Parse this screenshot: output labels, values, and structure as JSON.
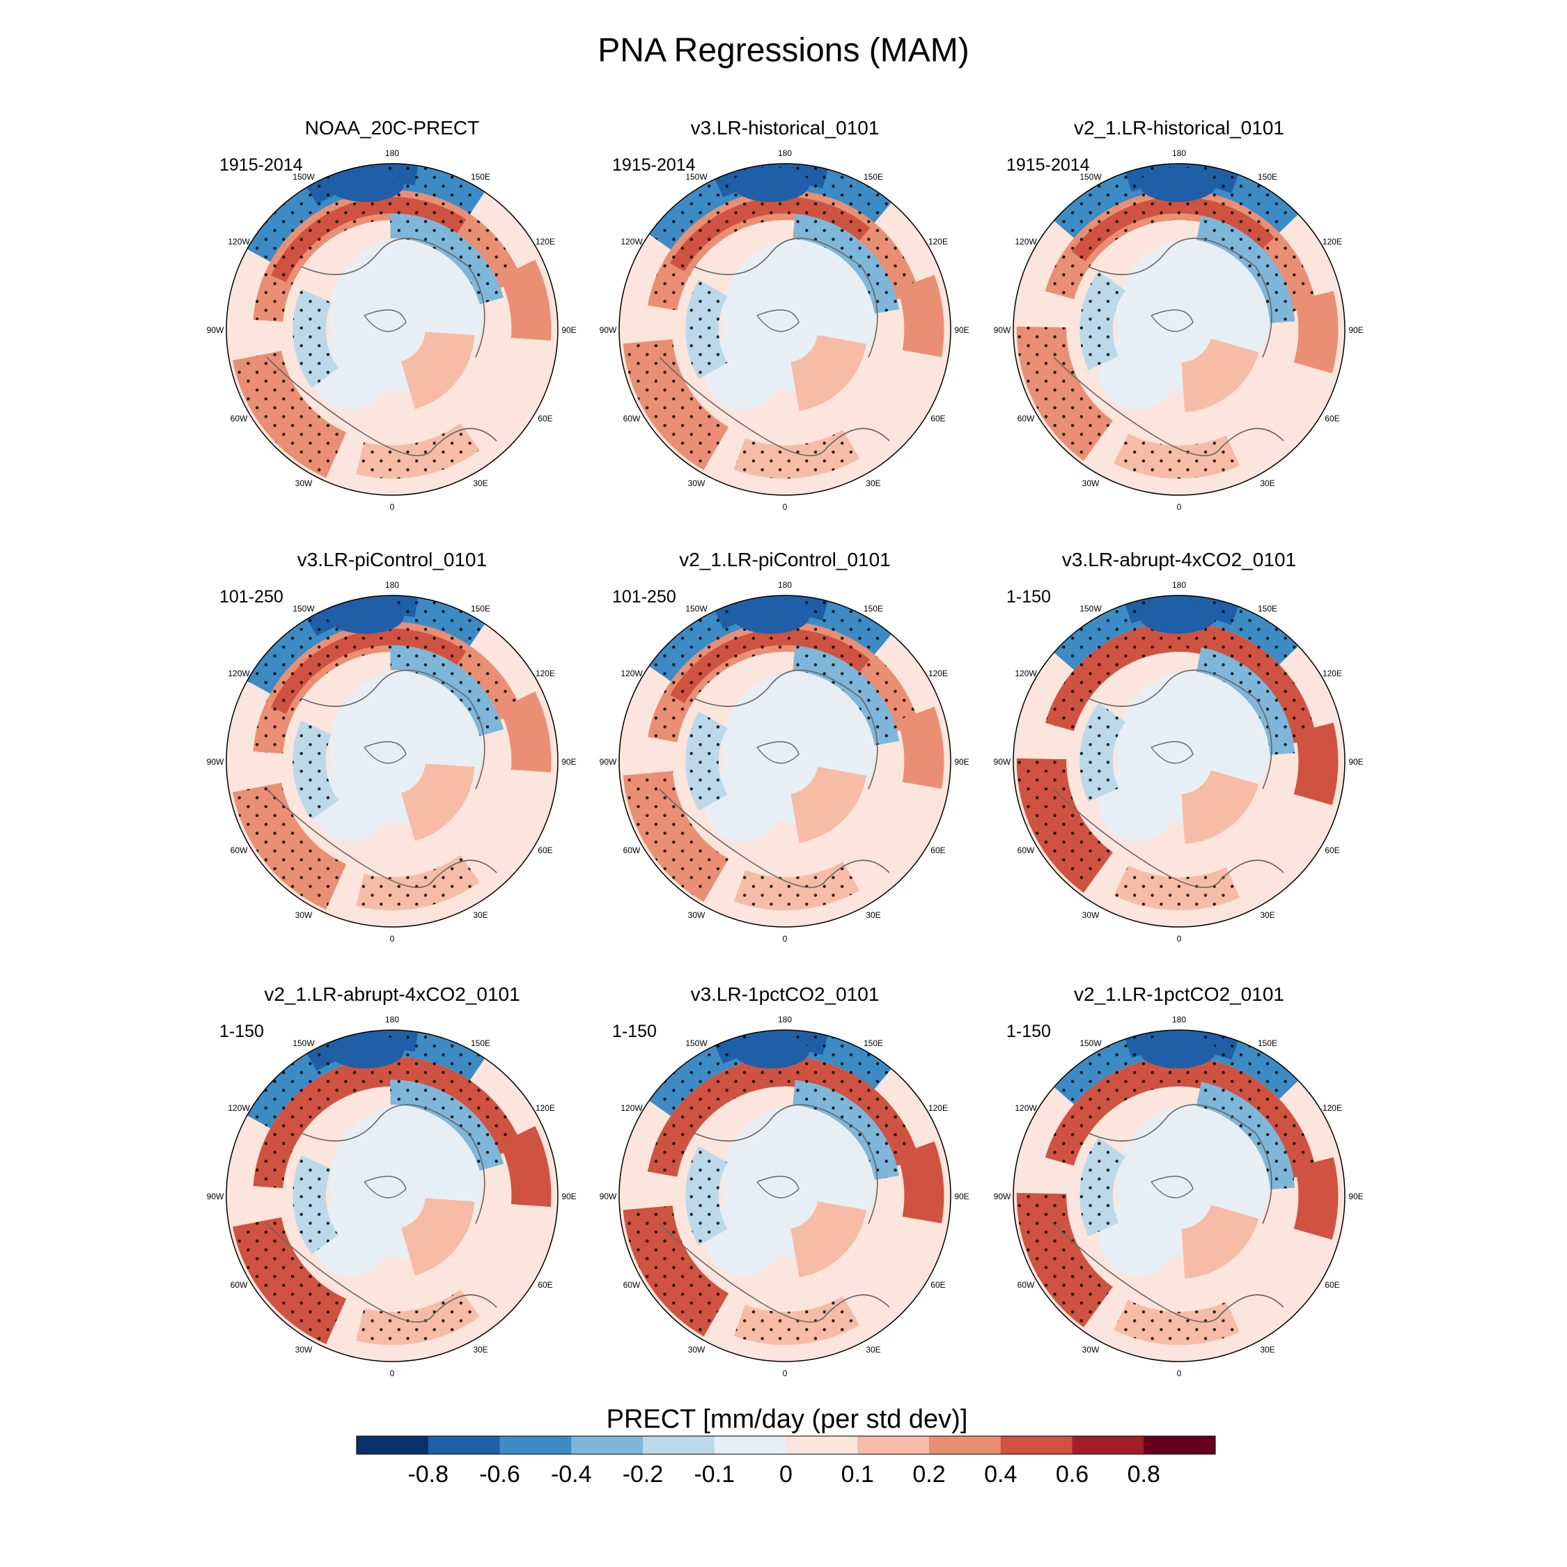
{
  "figure_title": "PNA Regressions (MAM)",
  "colors": {
    "levels": [
      "#08306b",
      "#1f5fa8",
      "#3d8bc4",
      "#7fb7da",
      "#bcd9ea",
      "#e6eff6",
      "#fbe5dc",
      "#f7bca6",
      "#ea8f74",
      "#cf5340",
      "#a41d2a",
      "#67001f"
    ],
    "coast": "#666666",
    "stipple": "#000000"
  },
  "chart_data": {
    "type": "heatmap",
    "projection": "north-polar-stereographic",
    "variable": "PRECT",
    "units_label": "PRECT [mm/day (per std dev)]",
    "colorbar_levels": [
      -0.8,
      -0.6,
      -0.4,
      -0.2,
      -0.1,
      0,
      0.1,
      0.2,
      0.4,
      0.6,
      0.8
    ],
    "colorbar_tick_labels": [
      "-0.8",
      "-0.6",
      "-0.4",
      "-0.2",
      "-0.1",
      "0",
      "0.1",
      "0.2",
      "0.4",
      "0.6",
      "0.8"
    ],
    "longitude_labels": [
      "180",
      "150E",
      "120E",
      "90E",
      "60E",
      "30E",
      "0",
      "30W",
      "60W",
      "90W",
      "120W",
      "150W"
    ],
    "panels": [
      {
        "title": "NOAA_20C-PRECT",
        "period": "1915-2014"
      },
      {
        "title": "v3.LR-historical_0101",
        "period": "1915-2014"
      },
      {
        "title": "v2_1.LR-historical_0101",
        "period": "1915-2014"
      },
      {
        "title": "v3.LR-piControl_0101",
        "period": "101-250"
      },
      {
        "title": "v2_1.LR-piControl_0101",
        "period": "101-250"
      },
      {
        "title": "v3.LR-abrupt-4xCO2_0101",
        "period": "1-150"
      },
      {
        "title": "v2_1.LR-abrupt-4xCO2_0101",
        "period": "1-150"
      },
      {
        "title": "v3.LR-1pctCO2_0101",
        "period": "1-150"
      },
      {
        "title": "v2_1.LR-1pctCO2_0101",
        "period": "1-150"
      }
    ]
  }
}
